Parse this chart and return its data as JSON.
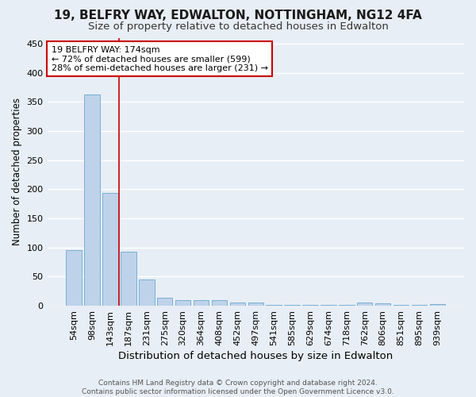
{
  "title1": "19, BELFRY WAY, EDWALTON, NOTTINGHAM, NG12 4FA",
  "title2": "Size of property relative to detached houses in Edwalton",
  "xlabel": "Distribution of detached houses by size in Edwalton",
  "ylabel": "Number of detached properties",
  "categories": [
    "54sqm",
    "98sqm",
    "143sqm",
    "187sqm",
    "231sqm",
    "275sqm",
    "320sqm",
    "364sqm",
    "408sqm",
    "452sqm",
    "497sqm",
    "541sqm",
    "585sqm",
    "629sqm",
    "674sqm",
    "718sqm",
    "762sqm",
    "806sqm",
    "851sqm",
    "895sqm",
    "939sqm"
  ],
  "values": [
    95,
    362,
    194,
    93,
    45,
    14,
    10,
    10,
    9,
    5,
    6,
    2,
    1,
    1,
    1,
    1,
    5,
    4,
    1,
    1,
    3
  ],
  "bar_color": "#bed3ea",
  "bar_edge_color": "#7aaed4",
  "vline_x": 2.5,
  "annotation_line1": "19 BELFRY WAY: 174sqm",
  "annotation_line2": "← 72% of detached houses are smaller (599)",
  "annotation_line3": "28% of semi-detached houses are larger (231) →",
  "annotation_box_facecolor": "#ffffff",
  "annotation_box_edgecolor": "#cc0000",
  "vline_color": "#cc0000",
  "footer": "Contains HM Land Registry data © Crown copyright and database right 2024.\nContains public sector information licensed under the Open Government Licence v3.0.",
  "ylim": [
    0,
    460
  ],
  "yticks": [
    0,
    50,
    100,
    150,
    200,
    250,
    300,
    350,
    400,
    450
  ],
  "background_color": "#e8eef5",
  "grid_color": "#ffffff",
  "title1_fontsize": 11,
  "title2_fontsize": 9.5,
  "xlabel_fontsize": 9.5,
  "ylabel_fontsize": 8.5,
  "tick_fontsize": 8,
  "annotation_fontsize": 8,
  "footer_fontsize": 6.5
}
